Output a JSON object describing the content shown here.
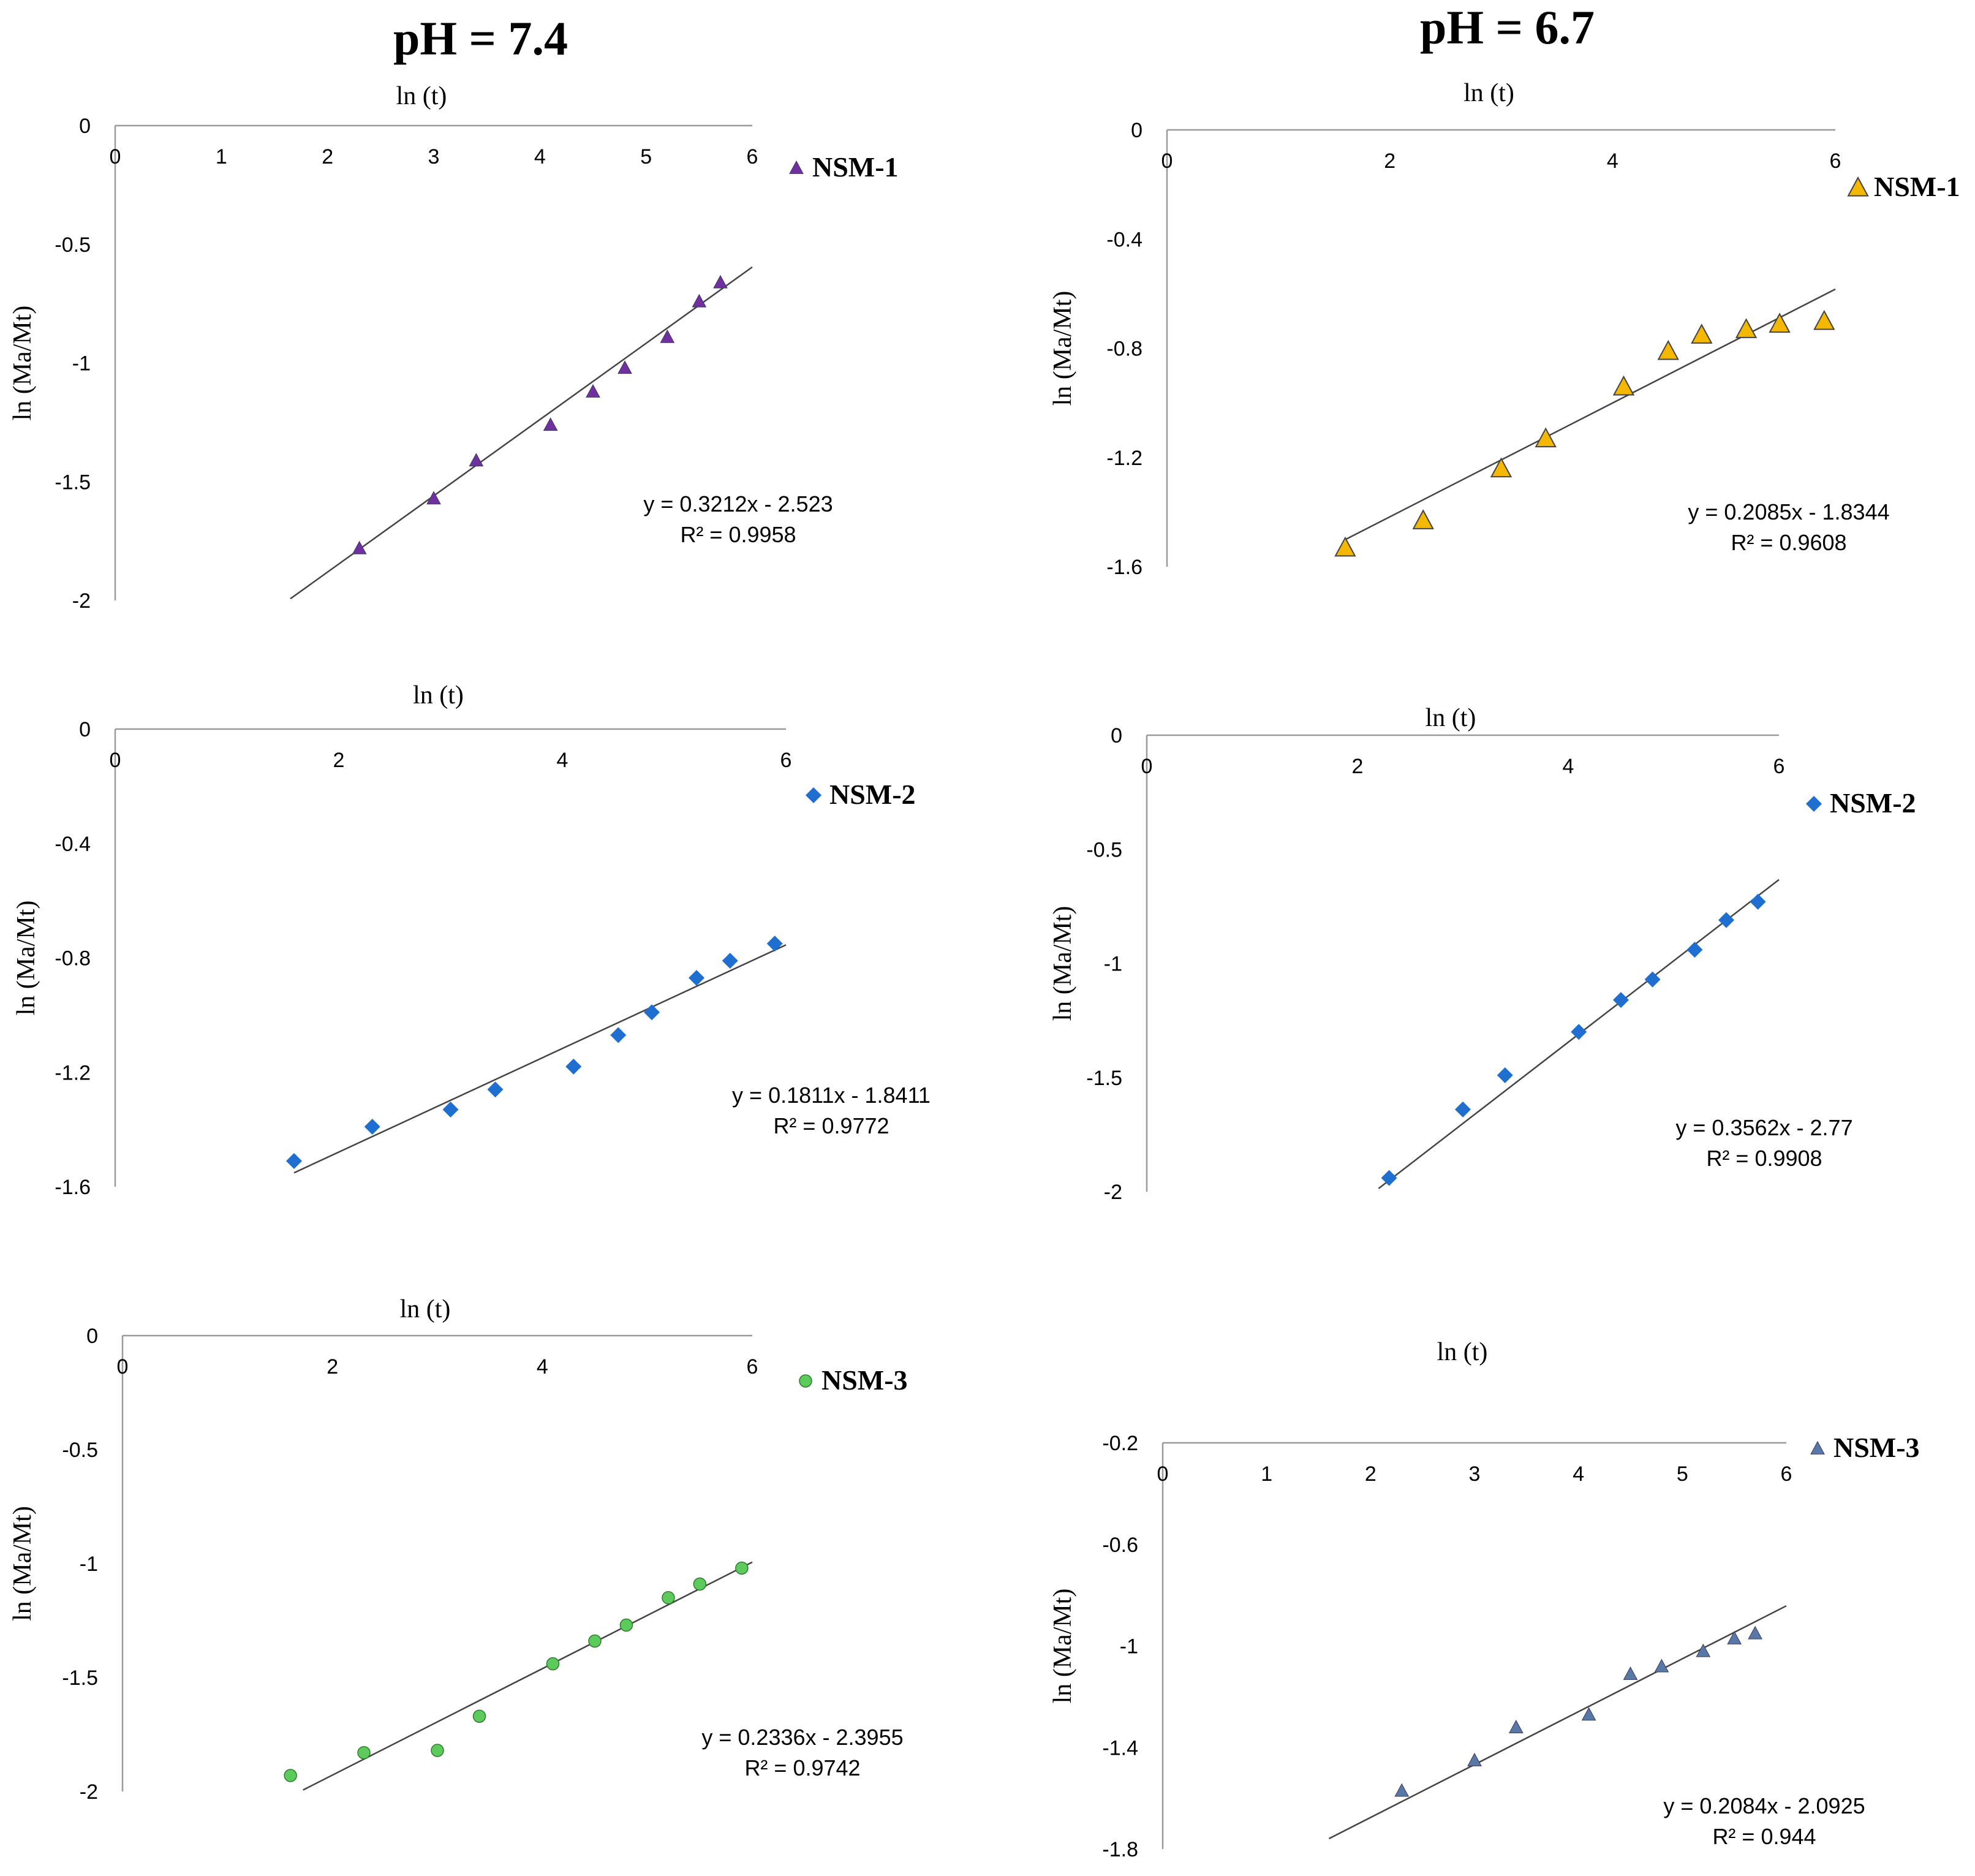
{
  "column_titles": {
    "left": "pH = 7.4",
    "right": "pH = 6.7"
  },
  "chart_data": [
    {
      "id": "ph74-nsm1",
      "type": "scatter",
      "xlabel": "ln (t)",
      "ylabel": "ln (Ma/Mt)",
      "xlim": [
        0,
        6
      ],
      "ylim": [
        -2,
        0
      ],
      "xticks": [
        "0",
        "1",
        "2",
        "3",
        "4",
        "5",
        "6"
      ],
      "xtick_values": [
        0,
        1,
        2,
        3,
        4,
        5,
        6
      ],
      "yticks": [
        "0",
        "-0.5",
        "-1",
        "-1.5",
        "-2"
      ],
      "ytick_values": [
        0,
        -0.5,
        -1,
        -1.5,
        -2
      ],
      "grid": false,
      "legend": "top-right",
      "marker": "triangle",
      "color": "#7030A0",
      "series": [
        {
          "name": "NSM-1",
          "x": [
            2.3,
            3.0,
            3.4,
            4.1,
            4.5,
            4.8,
            5.2,
            5.5,
            5.7
          ],
          "y": [
            -1.78,
            -1.57,
            -1.41,
            -1.26,
            -1.12,
            -1.02,
            -0.89,
            -0.74,
            -0.66
          ]
        }
      ],
      "trendline": {
        "slope": 0.3212,
        "intercept": -2.523,
        "x_range": [
          1.65,
          6.0
        ]
      },
      "equation": "y = 0.3212x - 2.523",
      "r2": "R² = 0.9958"
    },
    {
      "id": "ph74-nsm2",
      "type": "scatter",
      "xlabel": "ln (t)",
      "ylabel": "ln (Ma/Mt)",
      "xlim": [
        0,
        6
      ],
      "ylim": [
        -1.6,
        0
      ],
      "xticks": [
        "0",
        "2",
        "4",
        "6"
      ],
      "xtick_values": [
        0,
        2,
        4,
        6
      ],
      "yticks": [
        "0",
        "-0.4",
        "-0.8",
        "-1.2",
        "-1.6"
      ],
      "ytick_values": [
        0,
        -0.4,
        -0.8,
        -1.2,
        -1.6
      ],
      "grid": false,
      "legend": "top-right",
      "marker": "diamond",
      "color": "#1F6FD0",
      "series": [
        {
          "name": "NSM-2",
          "x": [
            1.6,
            2.3,
            3.0,
            3.4,
            4.1,
            4.5,
            4.8,
            5.2,
            5.5,
            5.9
          ],
          "y": [
            -1.51,
            -1.39,
            -1.33,
            -1.26,
            -1.18,
            -1.07,
            -0.99,
            -0.87,
            -0.81,
            -0.75
          ]
        }
      ],
      "trendline": {
        "slope": 0.1811,
        "intercept": -1.8411,
        "x_range": [
          1.6,
          6.0
        ]
      },
      "equation": "y = 0.1811x - 1.8411",
      "r2": "R² = 0.9772"
    },
    {
      "id": "ph74-nsm3",
      "type": "scatter",
      "xlabel": "ln (t)",
      "ylabel": "ln (Ma/Mt)",
      "xlim": [
        0,
        6
      ],
      "ylim": [
        -2,
        0
      ],
      "xticks": [
        "0",
        "2",
        "4",
        "6"
      ],
      "xtick_values": [
        0,
        2,
        4,
        6
      ],
      "yticks": [
        "0",
        "-0.5",
        "-1",
        "-1.5",
        "-2"
      ],
      "ytick_values": [
        0,
        -0.5,
        -1,
        -1.5,
        -2
      ],
      "grid": false,
      "legend": "top-right",
      "marker": "circle",
      "color": "#5CCB5C",
      "series": [
        {
          "name": "NSM-3",
          "x": [
            1.6,
            2.3,
            3.0,
            3.4,
            4.1,
            4.5,
            4.8,
            5.2,
            5.5,
            5.9
          ],
          "y": [
            -1.93,
            -1.83,
            -1.82,
            -1.67,
            -1.44,
            -1.34,
            -1.27,
            -1.15,
            -1.09,
            -1.02
          ]
        }
      ],
      "trendline": {
        "slope": 0.2336,
        "intercept": -2.3955,
        "x_range": [
          1.72,
          6.0
        ]
      },
      "equation": "y = 0.2336x - 2.3955",
      "r2": "R² = 0.9742"
    },
    {
      "id": "ph67-nsm1",
      "type": "scatter",
      "xlabel": "ln (t)",
      "ylabel": "ln (Ma/Mt)",
      "xlim": [
        0,
        6
      ],
      "ylim": [
        -1.6,
        0
      ],
      "xticks": [
        "0",
        "2",
        "4",
        "6"
      ],
      "xtick_values": [
        0,
        2,
        4,
        6
      ],
      "yticks": [
        "0",
        "-0.4",
        "-0.8",
        "-1.2",
        "-1.6"
      ],
      "ytick_values": [
        0,
        -0.4,
        -0.8,
        -1.2,
        -1.6
      ],
      "grid": false,
      "legend": "top-right",
      "marker": "triangle-large",
      "color": "#F5B800",
      "series": [
        {
          "name": "NSM-1",
          "x": [
            1.6,
            2.3,
            3.0,
            3.4,
            4.1,
            4.5,
            4.8,
            5.2,
            5.5,
            5.9
          ],
          "y": [
            -1.53,
            -1.43,
            -1.24,
            -1.13,
            -0.94,
            -0.81,
            -0.75,
            -0.73,
            -0.71,
            -0.7
          ]
        }
      ],
      "trendline": {
        "slope": 0.2085,
        "intercept": -1.8344,
        "x_range": [
          1.6,
          6.0
        ]
      },
      "equation": "y = 0.2085x - 1.8344",
      "r2": "R² = 0.9608"
    },
    {
      "id": "ph67-nsm2",
      "type": "scatter",
      "xlabel": "ln (t)",
      "ylabel": "ln (Ma/Mt)",
      "xlim": [
        0,
        6
      ],
      "ylim": [
        -2,
        0
      ],
      "xticks": [
        "0",
        "2",
        "4",
        "6"
      ],
      "xtick_values": [
        0,
        2,
        4,
        6
      ],
      "yticks": [
        "0",
        "-0.5",
        "-1",
        "-1.5",
        "-2"
      ],
      "ytick_values": [
        0,
        -0.5,
        -1,
        -1.5,
        -2
      ],
      "grid": false,
      "legend": "top-right",
      "marker": "diamond",
      "color": "#1F6FD0",
      "series": [
        {
          "name": "NSM-2",
          "x": [
            2.3,
            3.0,
            3.4,
            4.1,
            4.5,
            4.8,
            5.2,
            5.5,
            5.8
          ],
          "y": [
            -1.94,
            -1.64,
            -1.49,
            -1.3,
            -1.16,
            -1.07,
            -0.94,
            -0.81,
            -0.73
          ]
        }
      ],
      "trendline": {
        "slope": 0.3562,
        "intercept": -2.77,
        "x_range": [
          2.2,
          6.0
        ]
      },
      "equation": "y = 0.3562x - 2.77",
      "r2": "R² = 0.9908"
    },
    {
      "id": "ph67-nsm3",
      "type": "scatter",
      "xlabel": "ln (t)",
      "ylabel": "ln (Ma/Mt)",
      "xlim": [
        0,
        6
      ],
      "ylim": [
        -1.8,
        -0.2
      ],
      "xticks": [
        "0",
        "1",
        "2",
        "3",
        "4",
        "5",
        "6"
      ],
      "xtick_values": [
        0,
        1,
        2,
        3,
        4,
        5,
        6
      ],
      "yticks": [
        "-0.2",
        "-0.6",
        "-1",
        "-1.4",
        "-1.8"
      ],
      "ytick_values": [
        -0.2,
        -0.6,
        -1,
        -1.4,
        -1.8
      ],
      "grid": false,
      "legend": "top-right",
      "marker": "triangle",
      "color": "#5878A8",
      "series": [
        {
          "name": "NSM-3",
          "x": [
            2.3,
            3.0,
            3.4,
            4.1,
            4.5,
            4.8,
            5.2,
            5.5,
            5.7
          ],
          "y": [
            -1.57,
            -1.45,
            -1.32,
            -1.27,
            -1.11,
            -1.08,
            -1.02,
            -0.97,
            -0.95
          ]
        }
      ],
      "trendline": {
        "slope": 0.2084,
        "intercept": -2.0925,
        "x_range": [
          1.6,
          6.0
        ]
      },
      "equation": "y = 0.2084x - 2.0925",
      "r2": "R² = 0.944"
    }
  ]
}
